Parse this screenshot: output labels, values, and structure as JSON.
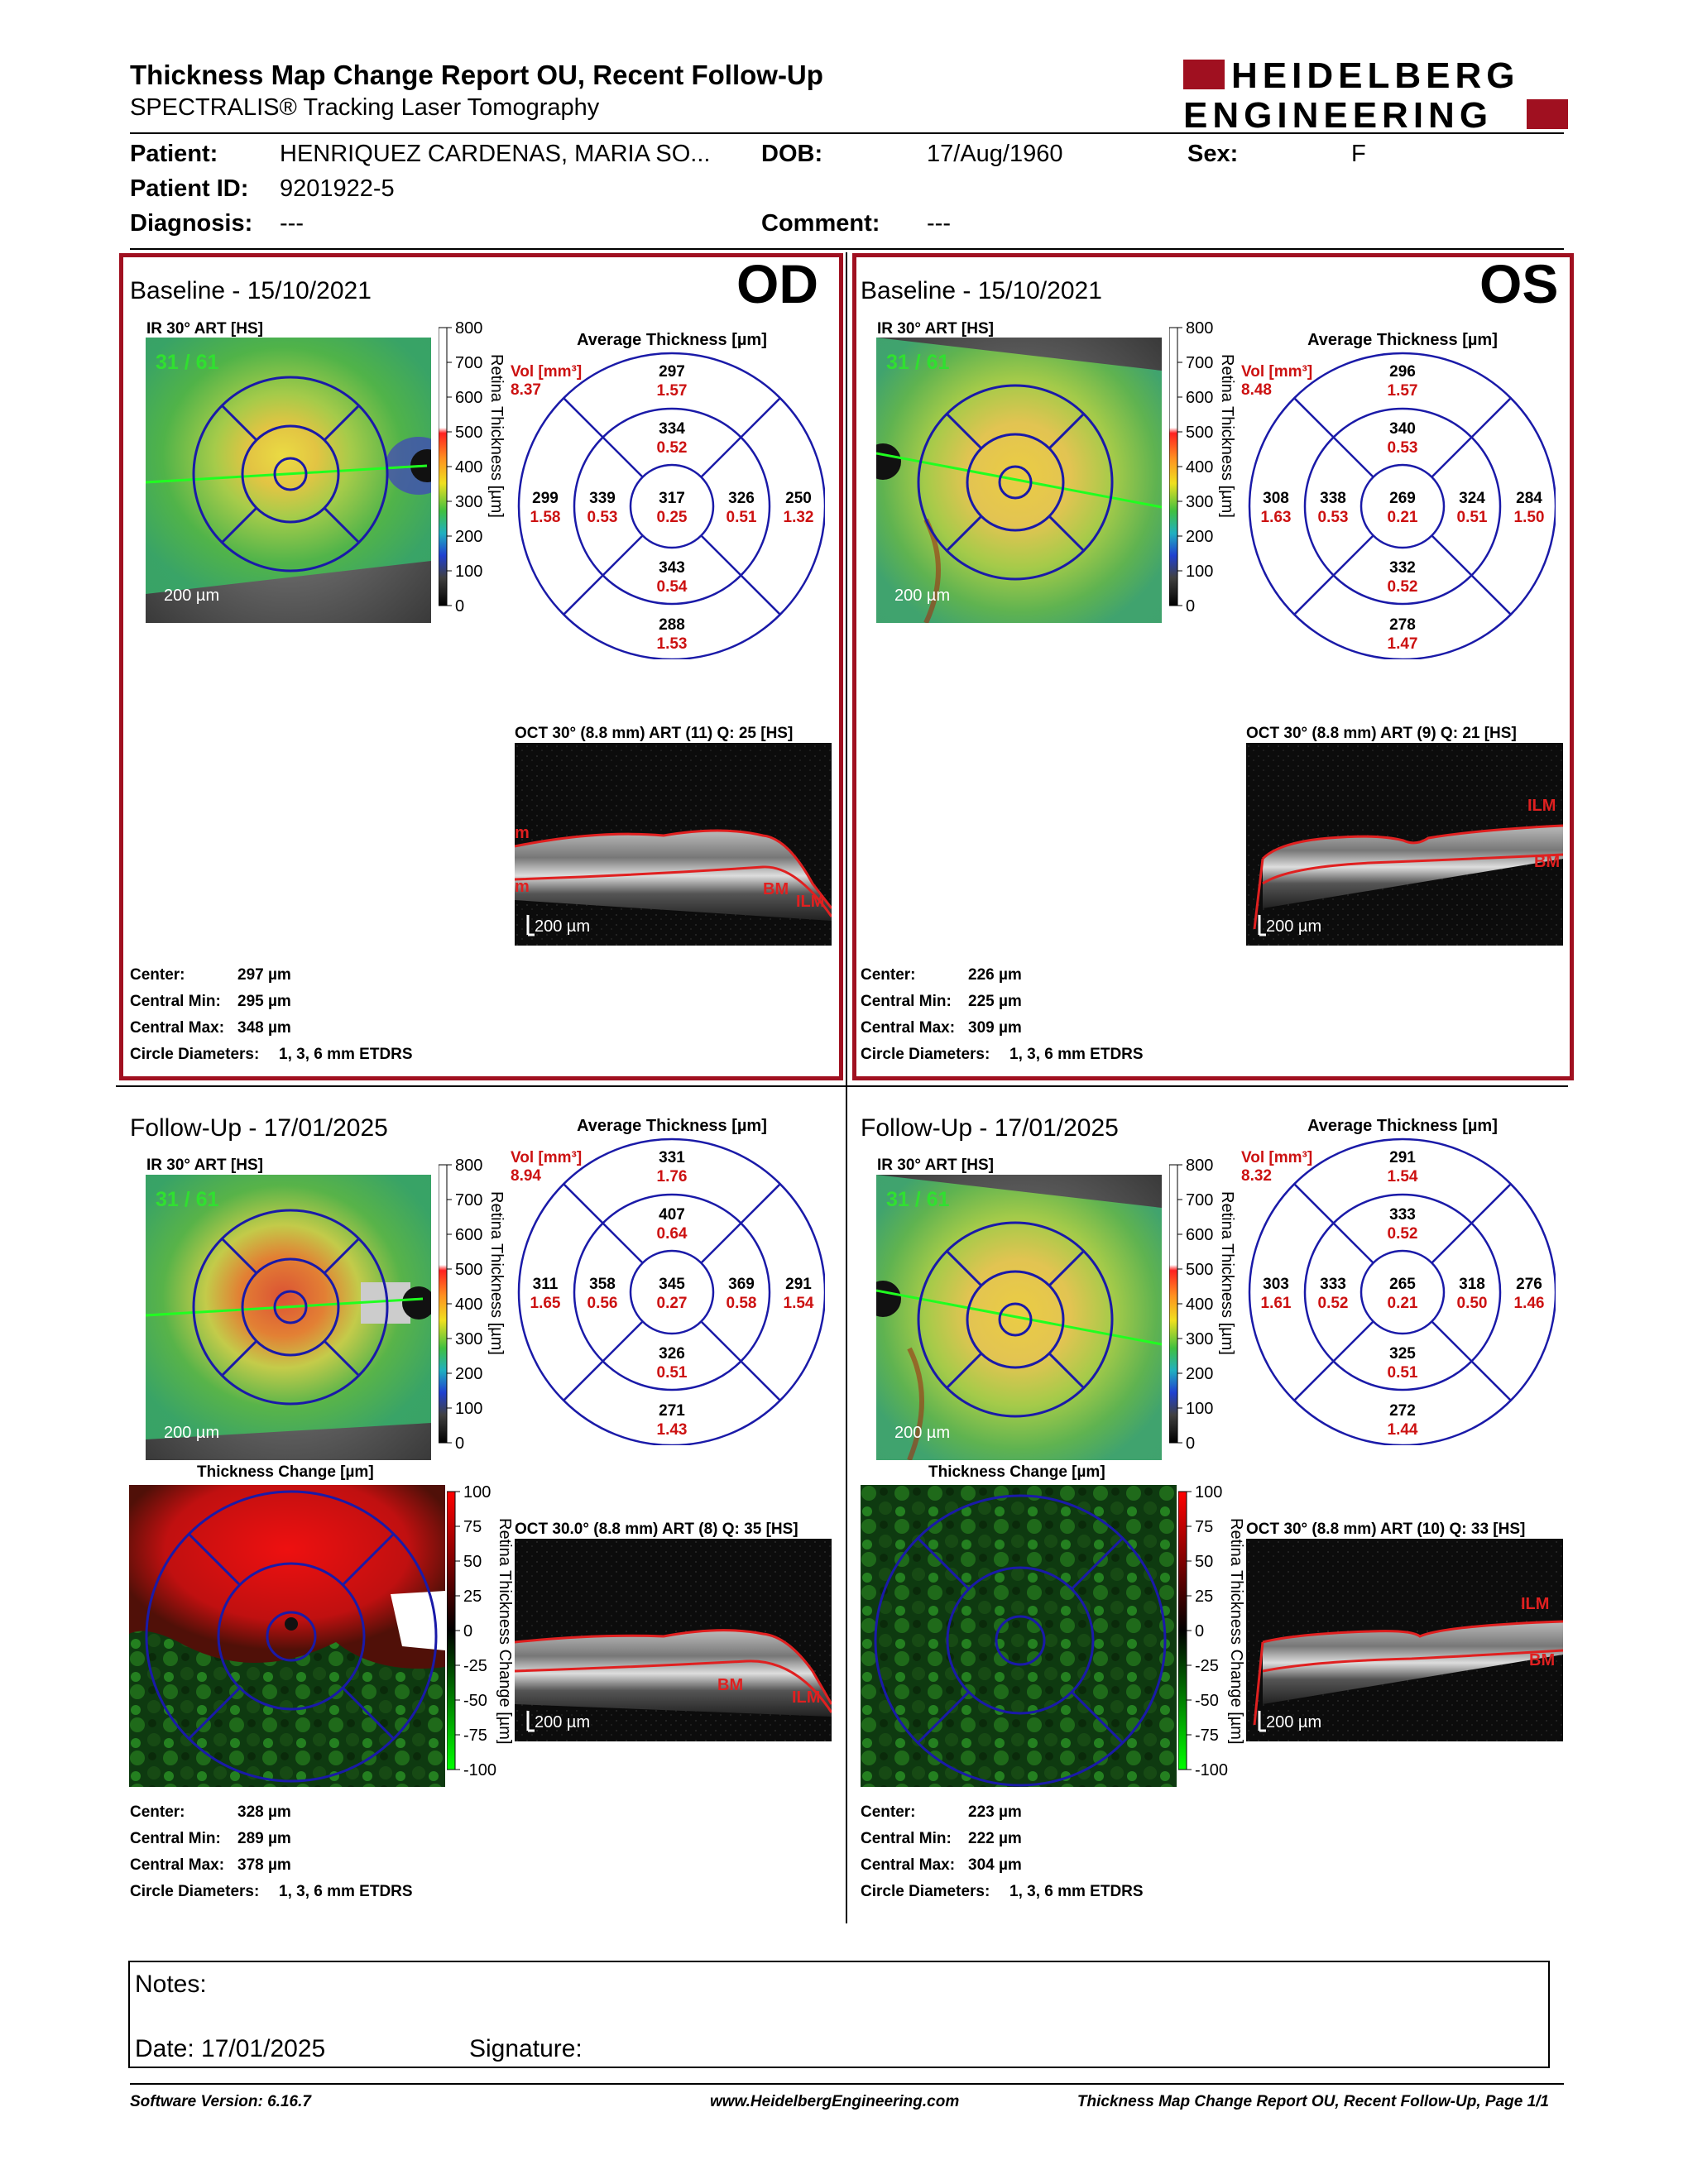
{
  "header": {
    "title": "Thickness Map Change Report OU, Recent Follow-Up",
    "subtitle": "SPECTRALIS® Tracking Laser Tomography",
    "logo_line1": "HEIDELBERG",
    "logo_line2": "ENGINEERING"
  },
  "patient": {
    "patient_label": "Patient:",
    "patient_value": "HENRIQUEZ CARDENAS, MARIA SO...",
    "dob_label": "DOB:",
    "dob_value": "17/Aug/1960",
    "sex_label": "Sex:",
    "sex_value": "F",
    "id_label": "Patient ID:",
    "id_value": "9201922-5",
    "diagnosis_label": "Diagnosis:",
    "diagnosis_value": "---",
    "comment_label": "Comment:",
    "comment_value": "---"
  },
  "colors": {
    "accent_red": "#a01020",
    "etdrs_blue": "#1a1aa8",
    "value_red": "#cc1111"
  },
  "panels": {
    "od_base": {
      "eye": "OD",
      "title": "Baseline - 15/10/2021",
      "ir_label": "IR 30° ART [HS]",
      "ir_count": "31 / 61",
      "scale": "200 µm",
      "avg_title": "Average Thickness [µm]",
      "vol_label": "Vol [mm³]",
      "vol_value": "8.37",
      "etdrs": {
        "center": [
          "317",
          "0.25"
        ],
        "inner_top": [
          "334",
          "0.52"
        ],
        "inner_bottom": [
          "343",
          "0.54"
        ],
        "inner_left": [
          "339",
          "0.53"
        ],
        "inner_right": [
          "326",
          "0.51"
        ],
        "outer_top": [
          "297",
          "1.57"
        ],
        "outer_bottom": [
          "288",
          "1.53"
        ],
        "outer_left": [
          "299",
          "1.58"
        ],
        "outer_right": [
          "250",
          "1.32"
        ]
      },
      "oct_label": "OCT 30° (8.8 mm) ART (11) Q: 25 [HS]",
      "stats": {
        "center": "297 µm",
        "min": "295 µm",
        "max": "348 µm",
        "circle": "1, 3, 6 mm ETDRS"
      }
    },
    "os_base": {
      "eye": "OS",
      "title": "Baseline - 15/10/2021",
      "ir_label": "IR 30° ART [HS]",
      "ir_count": "31 / 61",
      "scale": "200 µm",
      "avg_title": "Average Thickness [µm]",
      "vol_label": "Vol [mm³]",
      "vol_value": "8.48",
      "etdrs": {
        "center": [
          "269",
          "0.21"
        ],
        "inner_top": [
          "340",
          "0.53"
        ],
        "inner_bottom": [
          "332",
          "0.52"
        ],
        "inner_left": [
          "338",
          "0.53"
        ],
        "inner_right": [
          "324",
          "0.51"
        ],
        "outer_top": [
          "296",
          "1.57"
        ],
        "outer_bottom": [
          "278",
          "1.47"
        ],
        "outer_left": [
          "308",
          "1.63"
        ],
        "outer_right": [
          "284",
          "1.50"
        ]
      },
      "oct_label": "OCT 30° (8.8 mm) ART (9) Q: 21 [HS]",
      "stats": {
        "center": "226 µm",
        "min": "225 µm",
        "max": "309 µm",
        "circle": "1, 3, 6 mm ETDRS"
      }
    },
    "od_fu": {
      "title": "Follow-Up - 17/01/2025",
      "ir_label": "IR 30° ART [HS]",
      "ir_count": "31 / 61",
      "scale": "200 µm",
      "avg_title": "Average Thickness [µm]",
      "vol_label": "Vol [mm³]",
      "vol_value": "8.94",
      "etdrs": {
        "center": [
          "345",
          "0.27"
        ],
        "inner_top": [
          "407",
          "0.64"
        ],
        "inner_bottom": [
          "326",
          "0.51"
        ],
        "inner_left": [
          "358",
          "0.56"
        ],
        "inner_right": [
          "369",
          "0.58"
        ],
        "outer_top": [
          "331",
          "1.76"
        ],
        "outer_bottom": [
          "271",
          "1.43"
        ],
        "outer_left": [
          "311",
          "1.65"
        ],
        "outer_right": [
          "291",
          "1.54"
        ]
      },
      "change_title": "Thickness Change [µm]",
      "oct_label": "OCT 30.0° (8.8 mm) ART (8) Q: 35 [HS]",
      "stats": {
        "center": "328 µm",
        "min": "289 µm",
        "max": "378 µm",
        "circle": "1, 3, 6 mm ETDRS"
      }
    },
    "os_fu": {
      "title": "Follow-Up - 17/01/2025",
      "ir_label": "IR 30° ART [HS]",
      "ir_count": "31 / 61",
      "scale": "200 µm",
      "avg_title": "Average Thickness [µm]",
      "vol_label": "Vol [mm³]",
      "vol_value": "8.32",
      "etdrs": {
        "center": [
          "265",
          "0.21"
        ],
        "inner_top": [
          "333",
          "0.52"
        ],
        "inner_bottom": [
          "325",
          "0.51"
        ],
        "inner_left": [
          "333",
          "0.52"
        ],
        "inner_right": [
          "318",
          "0.50"
        ],
        "outer_top": [
          "291",
          "1.54"
        ],
        "outer_bottom": [
          "272",
          "1.44"
        ],
        "outer_left": [
          "303",
          "1.61"
        ],
        "outer_right": [
          "276",
          "1.46"
        ]
      },
      "change_title": "Thickness Change [µm]",
      "oct_label": "OCT 30° (8.8 mm) ART (10) Q: 33 [HS]",
      "stats": {
        "center": "223 µm",
        "min": "222 µm",
        "max": "304 µm",
        "circle": "1, 3, 6 mm ETDRS"
      }
    }
  },
  "stat_labels": {
    "center": "Center:",
    "min": "Central Min:",
    "max": "Central Max:",
    "circle": "Circle Diameters:"
  },
  "scales": {
    "thickness_ticks": [
      "800",
      "700",
      "600",
      "500",
      "400",
      "300",
      "200",
      "100",
      "0"
    ],
    "thickness_label": "Retina Thickness [µm]",
    "change_ticks": [
      "100",
      "75",
      "50",
      "25",
      "0",
      "-25",
      "-50",
      "-75",
      "-100"
    ],
    "change_label": "Retina Thickness Change [µm]"
  },
  "oct_tags": {
    "ilm": "ILM",
    "bm": "BM",
    "scale": "200 µm",
    "trunc": "m"
  },
  "notes": {
    "notes_label": "Notes:",
    "date_label": "Date: 17/01/2025",
    "signature_label": "Signature:"
  },
  "footer": {
    "software": "Software Version: 6.16.7",
    "website": "www.HeidelbergEngineering.com",
    "page": "Thickness Map Change Report OU, Recent Follow-Up, Page 1/1"
  }
}
